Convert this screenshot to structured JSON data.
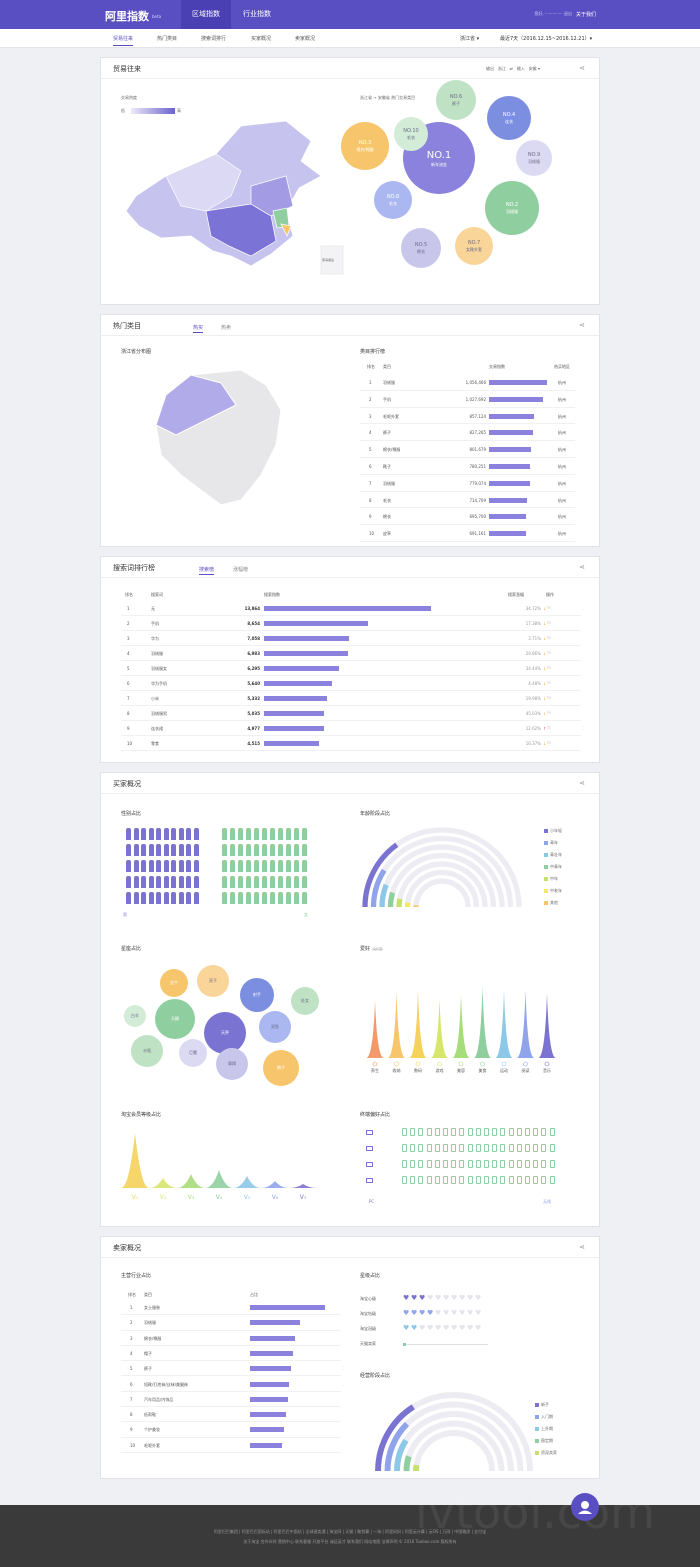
{
  "header": {
    "logo": "阿里指数",
    "beta": "beta",
    "tabs": [
      "区域指数",
      "行业指数"
    ],
    "user": "您好, ·············· 退出",
    "about": "关于我们"
  },
  "subnav": {
    "tabs": [
      "贸易往来",
      "热门类目",
      "搜索词排行",
      "买家概况",
      "卖家概况"
    ],
    "region": "浙江省 ▾",
    "range": "最近7天（2016.12.15~2016.12.21）▾"
  },
  "trade": {
    "title": "贸易往来",
    "heat_label": "交易热度",
    "low": "低",
    "high": "高",
    "ctrl": [
      "输出",
      "浙江",
      "⇄",
      "输入",
      "安徽 ▾"
    ],
    "flow_title": "浙江省 → 安徽省 热门交易类目",
    "hk": "南海诸岛",
    "bubbles": [
      {
        "rank": "NO.1",
        "name": "新车流金",
        "color": "#8a82dc"
      },
      {
        "rank": "NO.2",
        "name": "羽绒服",
        "color": "#8fcf9f"
      },
      {
        "rank": "NO.3",
        "name": "棉衣/棉服",
        "color": "#f7c56b"
      },
      {
        "rank": "NO.4",
        "name": "连衣",
        "color": "#7b8ee0"
      },
      {
        "rank": "NO.5",
        "name": "棉衣",
        "color": "#c9c6ec"
      },
      {
        "rank": "NO.6",
        "name": "裤子",
        "color": "#bfe2c4"
      },
      {
        "rank": "NO.7",
        "name": "女靴外套",
        "color": "#fad59a"
      },
      {
        "rank": "NO.8",
        "name": "毛衣",
        "color": "#aab7f0"
      },
      {
        "rank": "NO.9",
        "name": "羽绒服",
        "color": "#dcdaf3"
      },
      {
        "rank": "NO.10",
        "name": "毛衣",
        "color": "#d3ecd7"
      }
    ]
  },
  "hot": {
    "title": "热门类目",
    "tabs": [
      "热买",
      "热卖"
    ],
    "dist_title": "浙江省分布图",
    "rank_title": "类目排行榜",
    "headers": [
      "排名",
      "类目",
      "交易指数",
      "热买地区"
    ],
    "rows": [
      {
        "n": "1",
        "name": "羽绒服",
        "val": "1,056,466",
        "city": "杭州",
        "frac": 1.0
      },
      {
        "n": "2",
        "name": "手机",
        "val": "1,027,692",
        "city": "杭州",
        "frac": 0.93
      },
      {
        "n": "3",
        "name": "毛呢外套",
        "val": "857,124",
        "city": "杭州",
        "frac": 0.78
      },
      {
        "n": "4",
        "name": "裤子",
        "val": "827,265",
        "city": "杭州",
        "frac": 0.75
      },
      {
        "n": "5",
        "name": "棉衣/棉服",
        "val": "801,679",
        "city": "杭州",
        "frac": 0.73
      },
      {
        "n": "6",
        "name": "靴子",
        "val": "780,251",
        "city": "杭州",
        "frac": 0.71
      },
      {
        "n": "7",
        "name": "羽绒服",
        "val": "779,074",
        "city": "杭州",
        "frac": 0.71
      },
      {
        "n": "8",
        "name": "毛衣",
        "val": "714,709",
        "city": "杭州",
        "frac": 0.65
      },
      {
        "n": "9",
        "name": "棉衣",
        "val": "695,700",
        "city": "杭州",
        "frac": 0.63
      },
      {
        "n": "10",
        "name": "皮草",
        "val": "691,161",
        "city": "杭州",
        "frac": 0.63
      }
    ]
  },
  "search": {
    "title": "搜索词排行榜",
    "tabs": [
      "搜索榜",
      "涨幅榜"
    ],
    "headers": [
      "排名",
      "搜索词",
      "搜索指数",
      "搜索涨幅",
      "操作"
    ],
    "rows": [
      {
        "n": "1",
        "word": "无",
        "val": "13,864",
        "pct": "34.72%",
        "frac": 1.0,
        "up": false
      },
      {
        "n": "2",
        "word": "手机",
        "val": "8,654",
        "pct": "17.38%",
        "frac": 0.62,
        "up": false
      },
      {
        "n": "3",
        "word": "华为",
        "val": "7,058",
        "pct": "3.71%",
        "frac": 0.51,
        "up": false
      },
      {
        "n": "4",
        "word": "羽绒服",
        "val": "6,983",
        "pct": "29.86%",
        "frac": 0.5,
        "up": false
      },
      {
        "n": "5",
        "word": "羽绒服女",
        "val": "6,295",
        "pct": "34.44%",
        "frac": 0.45,
        "up": false
      },
      {
        "n": "6",
        "word": "华为手机",
        "val": "5,640",
        "pct": "4.48%",
        "frac": 0.41,
        "up": false
      },
      {
        "n": "7",
        "word": "小米",
        "val": "5,332",
        "pct": "19.98%",
        "frac": 0.38,
        "up": false
      },
      {
        "n": "8",
        "word": "羽绒服男",
        "val": "5,035",
        "pct": "45.03%",
        "frac": 0.36,
        "up": false
      },
      {
        "n": "9",
        "word": "连衣裙",
        "val": "4,977",
        "pct": "12.62%",
        "frac": 0.36,
        "up": true
      },
      {
        "n": "10",
        "word": "零食",
        "val": "4,515",
        "pct": "16.37%",
        "frac": 0.33,
        "up": false
      }
    ]
  },
  "buyer": {
    "title": "买家概况",
    "gender_title": "性别占比",
    "male": "男",
    "female": "女",
    "male_frac": 0.45,
    "female_frac": 0.55,
    "age_title": "年龄阶段占比",
    "age_legend": [
      {
        "label": "小年轻",
        "color": "#7b73d1"
      },
      {
        "label": "青年",
        "color": "#8fa4ea"
      },
      {
        "label": "青壮年",
        "color": "#8cc8e8"
      },
      {
        "label": "中青年",
        "color": "#8fcf9f"
      },
      {
        "label": "中年",
        "color": "#c5e06e"
      },
      {
        "label": "中老年",
        "color": "#f2e86a"
      },
      {
        "label": "其他",
        "color": "#f7c56b"
      }
    ],
    "star_title": "星座占比",
    "stars": [
      {
        "name": "天秤",
        "color": "#7b73d1"
      },
      {
        "name": "天蝎",
        "color": "#8fcf9f"
      },
      {
        "name": "金牛",
        "color": "#f7c56b"
      },
      {
        "name": "射手",
        "color": "#7b8ee0"
      },
      {
        "name": "双子",
        "color": "#fad59a"
      },
      {
        "name": "白羊",
        "color": "#d3ecd7"
      },
      {
        "name": "水瓶",
        "color": "#bfe2c4"
      },
      {
        "name": "巨蟹",
        "color": "#dcdaf3"
      },
      {
        "name": "摩羯",
        "color": "#c9c6ec"
      },
      {
        "name": "狮子",
        "color": "#f7c56b"
      },
      {
        "name": "双鱼",
        "color": "#aab7f0"
      },
      {
        "name": "处女",
        "color": "#bfe2c4"
      }
    ],
    "hobby_title": "爱好",
    "hobby_sub": "（喜好度）",
    "hobbies": [
      {
        "name": "养生",
        "color": "#f29a6b"
      },
      {
        "name": "收纳",
        "color": "#f7c56b"
      },
      {
        "name": "数码",
        "color": "#f5d25a"
      },
      {
        "name": "游戏",
        "color": "#d6e66a"
      },
      {
        "name": "美容",
        "color": "#a7dc7a"
      },
      {
        "name": "美食",
        "color": "#8fcf9f"
      },
      {
        "name": "运动",
        "color": "#8cc8e8"
      },
      {
        "name": "阅读",
        "color": "#8fa4ea"
      },
      {
        "name": "音乐",
        "color": "#7b73d1"
      }
    ],
    "vip_title": "淘宝会员等级占比",
    "vip_levels": [
      "V₁",
      "V₂",
      "V₃",
      "V₄",
      "V₅",
      "V₆",
      "V₇"
    ],
    "term_title": "终端偏好占比",
    "term_pc": "PC",
    "term_wireless": "无线"
  },
  "seller": {
    "title": "卖家概况",
    "ind_title": "主营行业占比",
    "ind_headers": [
      "排名",
      "类目",
      "占比"
    ],
    "rows": [
      {
        "n": "1",
        "name": "女士服装",
        "frac": 1.0
      },
      {
        "n": "2",
        "name": "羽绒服",
        "frac": 0.67
      },
      {
        "n": "3",
        "name": "棉衣/棉服",
        "frac": 0.6
      },
      {
        "n": "4",
        "name": "帽子",
        "frac": 0.57
      },
      {
        "n": "5",
        "name": "裤子",
        "frac": 0.55
      },
      {
        "n": "6",
        "name": "短靴/打底袜/丝袜/美腿袜",
        "frac": 0.52
      },
      {
        "n": "7",
        "name": "汽车用品/内饰品",
        "frac": 0.5
      },
      {
        "n": "8",
        "name": "低帮鞋",
        "frac": 0.48
      },
      {
        "n": "9",
        "name": "个护美妆",
        "frac": 0.45
      },
      {
        "n": "10",
        "name": "毛呢外套",
        "frac": 0.42
      }
    ],
    "level_title": "星级占比",
    "levels": [
      "淘宝心级",
      "淘宝钻级",
      "淘宝冠级",
      "天猫卖家"
    ],
    "stage_title": "经营阶段占比",
    "stage_legend": [
      {
        "label": "新手",
        "color": "#7b73d1"
      },
      {
        "label": "入门期",
        "color": "#8fa4ea"
      },
      {
        "label": "上升期",
        "color": "#8cc8e8"
      },
      {
        "label": "稳定期",
        "color": "#8fcf9f"
      },
      {
        "label": "资深卖家",
        "color": "#c5e06e"
      }
    ]
  },
  "footer": {
    "line1": "阿里巴巴集团 | 阿里巴巴国际站 | 阿里巴巴中国站 | 全球速卖通 | 淘宝网 | 天猫 | 聚划算 | 一淘 | 阿里妈妈 | 阿里云计算 | 云OS | 万网 | 中国雅虎 | 支付宝",
    "line2": "关于淘宝 合作伙伴 营销中心 联系客服 开放平台 诚征英才 联系我们 网站地图 法律声明 © 2016 Taobao.com 版权所有",
    "watermark": "ivtool.com"
  }
}
